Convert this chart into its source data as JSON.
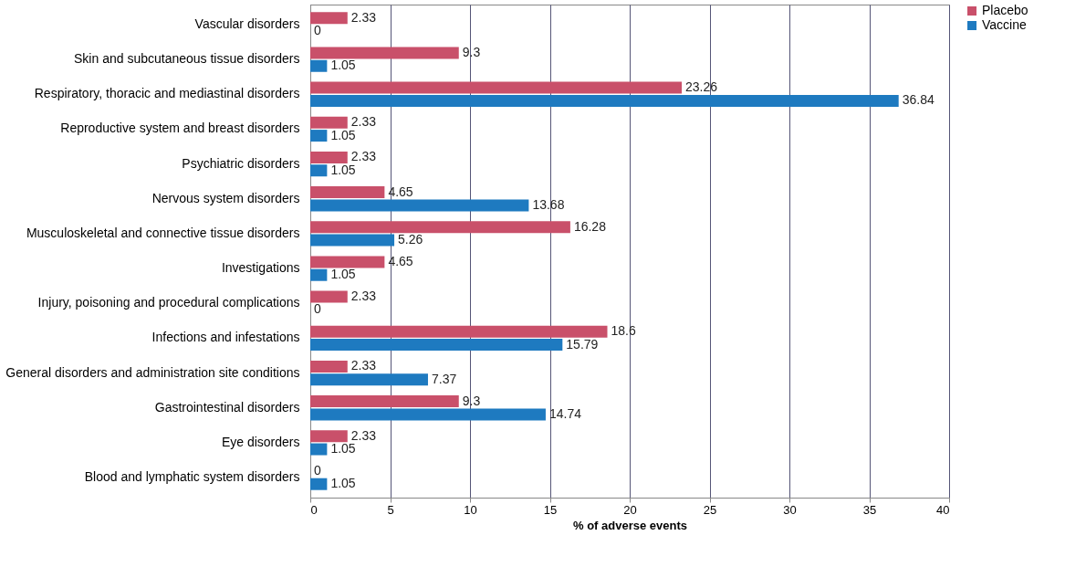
{
  "chart_data": {
    "type": "bar",
    "orientation": "horizontal",
    "xlabel": "% of adverse events",
    "categories": [
      "Vascular disorders",
      "Skin and subcutaneous tissue disorders",
      "Respiratory, thoracic and mediastinal disorders",
      "Reproductive system and breast disorders",
      "Psychiatric disorders",
      "Nervous system disorders",
      "Musculoskeletal and connective tissue disorders",
      "Investigations",
      "Injury, poisoning and procedural complications",
      "Infections and infestations",
      "General disorders and administration site conditions",
      "Gastrointestinal disorders",
      "Eye disorders",
      "Blood and lymphatic system disorders"
    ],
    "series": [
      {
        "name": "Placebo",
        "color": "#c9506a",
        "values": [
          2.33,
          9.3,
          23.26,
          2.33,
          2.33,
          4.65,
          16.28,
          4.65,
          2.33,
          18.6,
          2.33,
          9.3,
          2.33,
          0
        ]
      },
      {
        "name": "Vaccine",
        "color": "#1e7ac0",
        "values": [
          0,
          1.05,
          36.84,
          1.05,
          1.05,
          13.68,
          5.26,
          1.05,
          0,
          15.79,
          7.37,
          14.74,
          1.05,
          1.05
        ]
      }
    ],
    "xlim": [
      0,
      40
    ],
    "xticks": [
      0,
      5,
      10,
      15,
      20,
      25,
      30,
      35,
      40
    ],
    "grid": "x",
    "legend": "right",
    "data_labels": true
  }
}
